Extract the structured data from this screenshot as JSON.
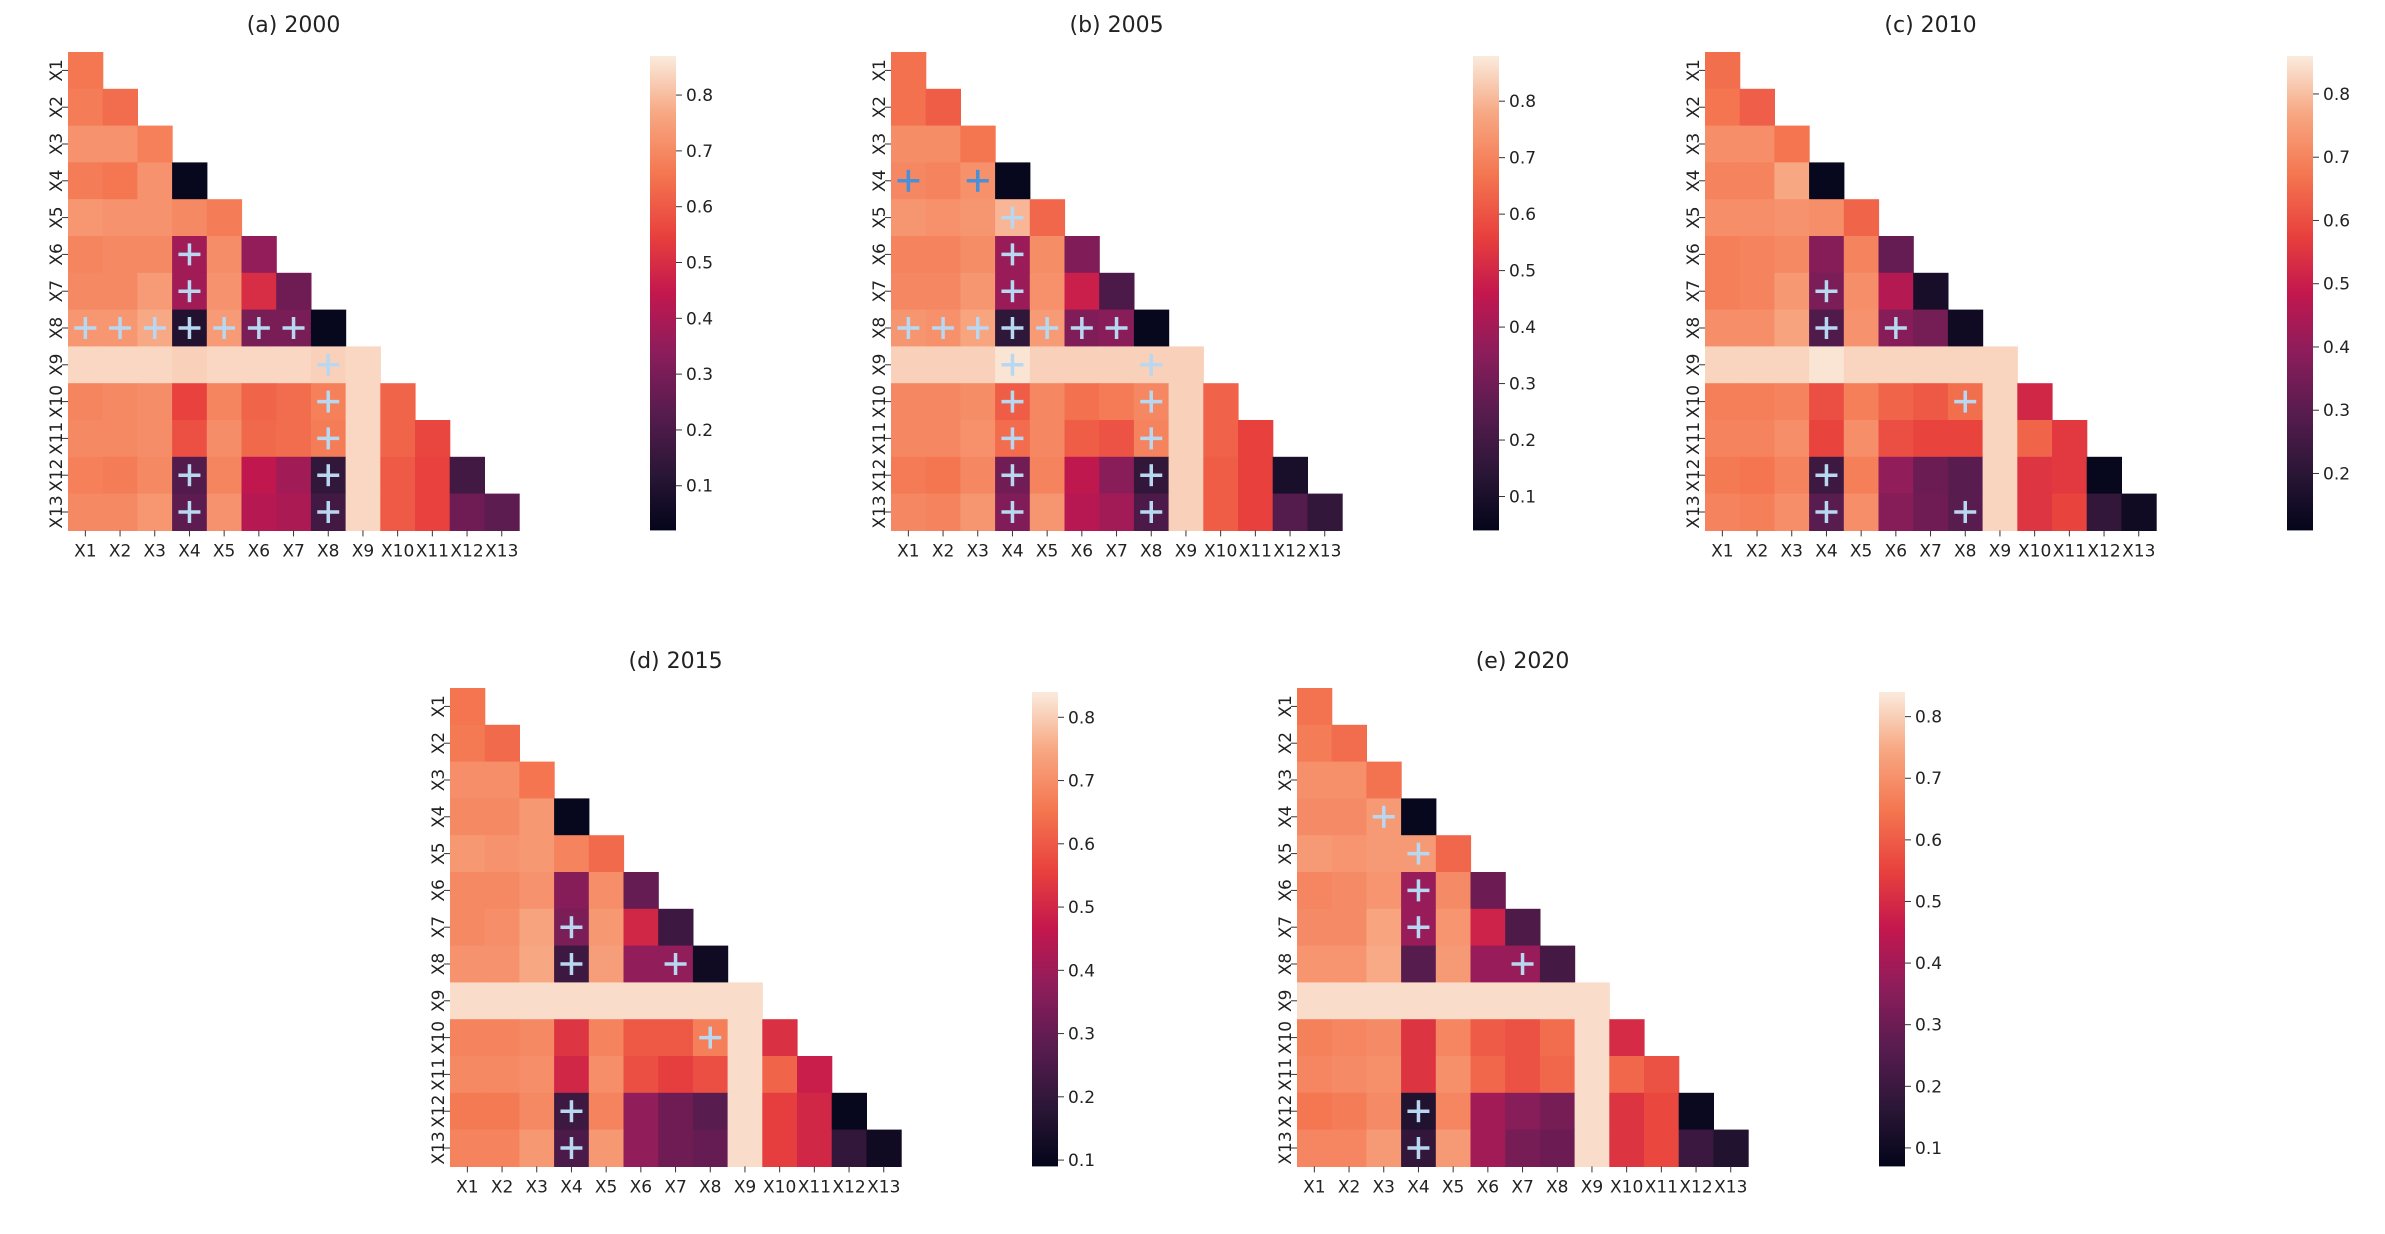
{
  "figure": {
    "variables": [
      "X1",
      "X2",
      "X3",
      "X4",
      "X5",
      "X6",
      "X7",
      "X8",
      "X9",
      "X10",
      "X11",
      "X12",
      "X13"
    ],
    "colormap": "rocket"
  },
  "colors": {
    "marker_light": "#b8d8f2",
    "marker_blue": "#4a90d9",
    "background": "#ffffff"
  },
  "chart_data": [
    {
      "type": "heatmap",
      "title": "(a) 2000",
      "vmin": 0.02,
      "vmax": 0.87,
      "colorbar_ticks": [
        0.1,
        0.2,
        0.3,
        0.4,
        0.5,
        0.6,
        0.7,
        0.8
      ],
      "colorbar_labels": [
        "0.1",
        "0.2",
        "0.3",
        "0.4",
        "0.5",
        "0.6",
        "0.7",
        "0.8"
      ],
      "x_labels": [
        "X1",
        "X2",
        "X3",
        "X4",
        "X5",
        "X6",
        "X7",
        "X8",
        "X9",
        "X10",
        "X11",
        "X12",
        "X13"
      ],
      "y_labels": [
        "X1",
        "X2",
        "X3",
        "X4",
        "X5",
        "X6",
        "X7",
        "X8",
        "X9",
        "X10",
        "X11",
        "X12",
        "X13"
      ],
      "matrix": [
        [
          0.66
        ],
        [
          0.67,
          0.64
        ],
        [
          0.72,
          0.72,
          0.68
        ],
        [
          0.67,
          0.66,
          0.72,
          0.03
        ],
        [
          0.73,
          0.72,
          0.72,
          0.7,
          0.67
        ],
        [
          0.69,
          0.7,
          0.7,
          0.38,
          0.71,
          0.35
        ],
        [
          0.7,
          0.7,
          0.74,
          0.38,
          0.72,
          0.5,
          0.28
        ],
        [
          0.73,
          0.73,
          0.77,
          0.1,
          0.74,
          0.3,
          0.3,
          0.03
        ],
        [
          0.84,
          0.84,
          0.84,
          0.83,
          0.84,
          0.84,
          0.84,
          0.83,
          0.84
        ],
        [
          0.69,
          0.7,
          0.71,
          0.55,
          0.69,
          0.62,
          0.64,
          0.68,
          0.84,
          0.62
        ],
        [
          0.7,
          0.7,
          0.71,
          0.58,
          0.71,
          0.63,
          0.64,
          0.67,
          0.84,
          0.62,
          0.56
        ],
        [
          0.68,
          0.67,
          0.7,
          0.22,
          0.69,
          0.44,
          0.38,
          0.14,
          0.84,
          0.6,
          0.55,
          0.18
        ],
        [
          0.7,
          0.7,
          0.73,
          0.24,
          0.72,
          0.42,
          0.4,
          0.18,
          0.84,
          0.6,
          0.55,
          0.28,
          0.24
        ]
      ],
      "markers": [
        {
          "row": 5,
          "col": 3,
          "style": "light"
        },
        {
          "row": 6,
          "col": 3,
          "style": "light"
        },
        {
          "row": 7,
          "col": 0,
          "style": "light"
        },
        {
          "row": 7,
          "col": 1,
          "style": "light"
        },
        {
          "row": 7,
          "col": 2,
          "style": "light"
        },
        {
          "row": 7,
          "col": 3,
          "style": "light"
        },
        {
          "row": 7,
          "col": 4,
          "style": "light"
        },
        {
          "row": 7,
          "col": 5,
          "style": "light"
        },
        {
          "row": 7,
          "col": 6,
          "style": "light"
        },
        {
          "row": 8,
          "col": 7,
          "style": "light"
        },
        {
          "row": 9,
          "col": 7,
          "style": "light"
        },
        {
          "row": 10,
          "col": 7,
          "style": "light"
        },
        {
          "row": 11,
          "col": 3,
          "style": "light"
        },
        {
          "row": 11,
          "col": 7,
          "style": "light"
        },
        {
          "row": 12,
          "col": 3,
          "style": "light"
        },
        {
          "row": 12,
          "col": 7,
          "style": "light"
        }
      ]
    },
    {
      "type": "heatmap",
      "title": "(b) 2005",
      "vmin": 0.04,
      "vmax": 0.88,
      "colorbar_ticks": [
        0.1,
        0.2,
        0.3,
        0.4,
        0.5,
        0.6,
        0.7,
        0.8
      ],
      "colorbar_labels": [
        "0.1",
        "0.2",
        "0.3",
        "0.4",
        "0.5",
        "0.6",
        "0.7",
        "0.8"
      ],
      "x_labels": [
        "X1",
        "X2",
        "X3",
        "X4",
        "X5",
        "X6",
        "X7",
        "X8",
        "X9",
        "X10",
        "X11",
        "X12",
        "X13"
      ],
      "y_labels": [
        "X1",
        "X2",
        "X3",
        "X4",
        "X5",
        "X6",
        "X7",
        "X8",
        "X9",
        "X10",
        "X11",
        "X12",
        "X13"
      ],
      "matrix": [
        [
          0.66
        ],
        [
          0.66,
          0.62
        ],
        [
          0.72,
          0.72,
          0.67
        ],
        [
          0.71,
          0.7,
          0.73,
          0.05
        ],
        [
          0.74,
          0.73,
          0.74,
          0.8,
          0.64
        ],
        [
          0.7,
          0.7,
          0.72,
          0.38,
          0.72,
          0.33
        ],
        [
          0.71,
          0.71,
          0.74,
          0.38,
          0.73,
          0.48,
          0.22
        ],
        [
          0.74,
          0.73,
          0.77,
          0.15,
          0.75,
          0.33,
          0.35,
          0.05
        ],
        [
          0.84,
          0.84,
          0.84,
          0.87,
          0.84,
          0.84,
          0.84,
          0.84,
          0.84
        ],
        [
          0.71,
          0.71,
          0.72,
          0.62,
          0.71,
          0.66,
          0.68,
          0.71,
          0.84,
          0.63
        ],
        [
          0.71,
          0.71,
          0.73,
          0.65,
          0.71,
          0.62,
          0.6,
          0.7,
          0.84,
          0.63,
          0.56
        ],
        [
          0.68,
          0.67,
          0.71,
          0.3,
          0.7,
          0.45,
          0.35,
          0.16,
          0.84,
          0.62,
          0.56,
          0.1
        ],
        [
          0.71,
          0.7,
          0.74,
          0.33,
          0.74,
          0.44,
          0.4,
          0.22,
          0.84,
          0.62,
          0.56,
          0.24,
          0.16
        ]
      ],
      "markers": [
        {
          "row": 3,
          "col": 0,
          "style": "blue"
        },
        {
          "row": 3,
          "col": 2,
          "style": "blue"
        },
        {
          "row": 4,
          "col": 3,
          "style": "light"
        },
        {
          "row": 5,
          "col": 3,
          "style": "light"
        },
        {
          "row": 6,
          "col": 3,
          "style": "light"
        },
        {
          "row": 7,
          "col": 0,
          "style": "light"
        },
        {
          "row": 7,
          "col": 1,
          "style": "light"
        },
        {
          "row": 7,
          "col": 2,
          "style": "light"
        },
        {
          "row": 7,
          "col": 3,
          "style": "light"
        },
        {
          "row": 7,
          "col": 4,
          "style": "light"
        },
        {
          "row": 7,
          "col": 5,
          "style": "light"
        },
        {
          "row": 7,
          "col": 6,
          "style": "light"
        },
        {
          "row": 8,
          "col": 3,
          "style": "light"
        },
        {
          "row": 8,
          "col": 7,
          "style": "light"
        },
        {
          "row": 9,
          "col": 3,
          "style": "light"
        },
        {
          "row": 9,
          "col": 7,
          "style": "light"
        },
        {
          "row": 10,
          "col": 3,
          "style": "light"
        },
        {
          "row": 10,
          "col": 7,
          "style": "light"
        },
        {
          "row": 11,
          "col": 3,
          "style": "light"
        },
        {
          "row": 11,
          "col": 7,
          "style": "light"
        },
        {
          "row": 12,
          "col": 3,
          "style": "light"
        },
        {
          "row": 12,
          "col": 7,
          "style": "light"
        }
      ]
    },
    {
      "type": "heatmap",
      "title": "(c) 2010",
      "vmin": 0.11,
      "vmax": 0.86,
      "colorbar_ticks": [
        0.2,
        0.3,
        0.4,
        0.5,
        0.6,
        0.7,
        0.8
      ],
      "colorbar_labels": [
        "0.2",
        "0.3",
        "0.4",
        "0.5",
        "0.6",
        "0.7",
        "0.8"
      ],
      "x_labels": [
        "X1",
        "X2",
        "X3",
        "X4",
        "X5",
        "X6",
        "X7",
        "X8",
        "X9",
        "X10",
        "X11",
        "X12",
        "X13"
      ],
      "y_labels": [
        "X1",
        "X2",
        "X3",
        "X4",
        "X5",
        "X6",
        "X7",
        "X8",
        "X9",
        "X10",
        "X11",
        "X12",
        "X13"
      ],
      "matrix": [
        [
          0.66
        ],
        [
          0.67,
          0.63
        ],
        [
          0.72,
          0.72,
          0.67
        ],
        [
          0.7,
          0.7,
          0.77,
          0.12
        ],
        [
          0.72,
          0.72,
          0.73,
          0.72,
          0.64
        ],
        [
          0.69,
          0.7,
          0.71,
          0.38,
          0.7,
          0.32
        ],
        [
          0.69,
          0.7,
          0.74,
          0.36,
          0.72,
          0.46,
          0.16
        ],
        [
          0.72,
          0.72,
          0.76,
          0.28,
          0.73,
          0.38,
          0.35,
          0.14
        ],
        [
          0.83,
          0.83,
          0.83,
          0.85,
          0.83,
          0.83,
          0.83,
          0.83,
          0.83
        ],
        [
          0.69,
          0.69,
          0.7,
          0.6,
          0.69,
          0.64,
          0.62,
          0.66,
          0.83,
          0.52
        ],
        [
          0.7,
          0.7,
          0.72,
          0.58,
          0.72,
          0.6,
          0.58,
          0.58,
          0.83,
          0.64,
          0.56
        ],
        [
          0.68,
          0.67,
          0.7,
          0.24,
          0.69,
          0.4,
          0.33,
          0.3,
          0.83,
          0.55,
          0.56,
          0.12
        ],
        [
          0.7,
          0.69,
          0.72,
          0.3,
          0.72,
          0.38,
          0.34,
          0.3,
          0.83,
          0.55,
          0.58,
          0.22,
          0.14
        ]
      ],
      "markers": [
        {
          "row": 6,
          "col": 3,
          "style": "light"
        },
        {
          "row": 7,
          "col": 3,
          "style": "light"
        },
        {
          "row": 7,
          "col": 5,
          "style": "light"
        },
        {
          "row": 9,
          "col": 7,
          "style": "light"
        },
        {
          "row": 11,
          "col": 3,
          "style": "light"
        },
        {
          "row": 12,
          "col": 3,
          "style": "light"
        },
        {
          "row": 12,
          "col": 7,
          "style": "light"
        }
      ]
    },
    {
      "type": "heatmap",
      "title": "(d) 2015",
      "vmin": 0.09,
      "vmax": 0.84,
      "colorbar_ticks": [
        0.1,
        0.2,
        0.3,
        0.4,
        0.5,
        0.6,
        0.7,
        0.8
      ],
      "colorbar_labels": [
        "0.1",
        "0.2",
        "0.3",
        "0.4",
        "0.5",
        "0.6",
        "0.7",
        "0.8"
      ],
      "x_labels": [
        "X1",
        "X2",
        "X3",
        "X4",
        "X5",
        "X6",
        "X7",
        "X8",
        "X9",
        "X10",
        "X11",
        "X12",
        "X13"
      ],
      "y_labels": [
        "X1",
        "X2",
        "X3",
        "X4",
        "X5",
        "X6",
        "X7",
        "X8",
        "X9",
        "X10",
        "X11",
        "X12",
        "X13"
      ],
      "matrix": [
        [
          0.65
        ],
        [
          0.66,
          0.63
        ],
        [
          0.7,
          0.7,
          0.65
        ],
        [
          0.69,
          0.69,
          0.72,
          0.1
        ],
        [
          0.72,
          0.71,
          0.72,
          0.68,
          0.63
        ],
        [
          0.69,
          0.69,
          0.71,
          0.36,
          0.7,
          0.3
        ],
        [
          0.69,
          0.7,
          0.74,
          0.34,
          0.72,
          0.5,
          0.22
        ],
        [
          0.71,
          0.71,
          0.75,
          0.22,
          0.73,
          0.38,
          0.38,
          0.12
        ],
        [
          0.82,
          0.82,
          0.82,
          0.82,
          0.82,
          0.82,
          0.82,
          0.82,
          0.82
        ],
        [
          0.68,
          0.68,
          0.69,
          0.53,
          0.68,
          0.6,
          0.6,
          0.67,
          0.82,
          0.52
        ],
        [
          0.69,
          0.69,
          0.7,
          0.5,
          0.7,
          0.58,
          0.55,
          0.58,
          0.82,
          0.62,
          0.48
        ],
        [
          0.66,
          0.66,
          0.69,
          0.22,
          0.68,
          0.38,
          0.32,
          0.28,
          0.82,
          0.55,
          0.5,
          0.1
        ],
        [
          0.68,
          0.68,
          0.72,
          0.25,
          0.72,
          0.38,
          0.32,
          0.3,
          0.82,
          0.55,
          0.5,
          0.2,
          0.12
        ]
      ],
      "markers": [
        {
          "row": 6,
          "col": 3,
          "style": "light"
        },
        {
          "row": 7,
          "col": 3,
          "style": "light"
        },
        {
          "row": 7,
          "col": 6,
          "style": "light"
        },
        {
          "row": 9,
          "col": 7,
          "style": "light"
        },
        {
          "row": 11,
          "col": 3,
          "style": "light"
        },
        {
          "row": 12,
          "col": 3,
          "style": "light"
        }
      ]
    },
    {
      "type": "heatmap",
      "title": "(e) 2020",
      "vmin": 0.07,
      "vmax": 0.84,
      "colorbar_ticks": [
        0.1,
        0.2,
        0.3,
        0.4,
        0.5,
        0.6,
        0.7,
        0.8
      ],
      "colorbar_labels": [
        "0.1",
        "0.2",
        "0.3",
        "0.4",
        "0.5",
        "0.6",
        "0.7",
        "0.8"
      ],
      "x_labels": [
        "X1",
        "X2",
        "X3",
        "X4",
        "X5",
        "X6",
        "X7",
        "X8",
        "X9",
        "X10",
        "X11",
        "X12",
        "X13"
      ],
      "y_labels": [
        "X1",
        "X2",
        "X3",
        "X4",
        "X5",
        "X6",
        "X7",
        "X8",
        "X9",
        "X10",
        "X11",
        "X12",
        "X13"
      ],
      "matrix": [
        [
          0.64
        ],
        [
          0.66,
          0.63
        ],
        [
          0.7,
          0.7,
          0.64
        ],
        [
          0.69,
          0.69,
          0.72,
          0.08
        ],
        [
          0.72,
          0.71,
          0.72,
          0.72,
          0.62
        ],
        [
          0.68,
          0.69,
          0.71,
          0.38,
          0.69,
          0.3
        ],
        [
          0.69,
          0.69,
          0.74,
          0.38,
          0.71,
          0.48,
          0.24
        ],
        [
          0.71,
          0.71,
          0.75,
          0.26,
          0.72,
          0.38,
          0.38,
          0.22
        ],
        [
          0.82,
          0.82,
          0.82,
          0.82,
          0.82,
          0.82,
          0.82,
          0.82,
          0.82
        ],
        [
          0.67,
          0.68,
          0.69,
          0.52,
          0.68,
          0.6,
          0.58,
          0.63,
          0.82,
          0.5
        ],
        [
          0.68,
          0.69,
          0.7,
          0.52,
          0.7,
          0.62,
          0.58,
          0.62,
          0.82,
          0.62,
          0.58
        ],
        [
          0.65,
          0.66,
          0.69,
          0.14,
          0.68,
          0.4,
          0.35,
          0.32,
          0.82,
          0.52,
          0.56,
          0.09
        ],
        [
          0.68,
          0.68,
          0.72,
          0.18,
          0.72,
          0.4,
          0.32,
          0.3,
          0.82,
          0.52,
          0.56,
          0.2,
          0.14
        ]
      ],
      "markers": [
        {
          "row": 3,
          "col": 2,
          "style": "light"
        },
        {
          "row": 4,
          "col": 3,
          "style": "light"
        },
        {
          "row": 5,
          "col": 3,
          "style": "light"
        },
        {
          "row": 6,
          "col": 3,
          "style": "light"
        },
        {
          "row": 7,
          "col": 6,
          "style": "light"
        },
        {
          "row": 11,
          "col": 3,
          "style": "light"
        },
        {
          "row": 12,
          "col": 3,
          "style": "light"
        }
      ]
    }
  ]
}
